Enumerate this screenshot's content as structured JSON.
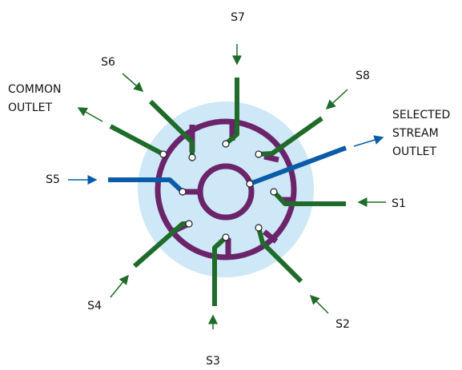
{
  "labels": {
    "s7": "S7",
    "s6": "S6",
    "s8": "S8",
    "s5": "S5",
    "s1": "S1",
    "s4": "S4",
    "s2": "S2",
    "s3": "S3",
    "common_outlet": [
      "COMMON",
      "OUTLET"
    ],
    "selected_stream_outlet": [
      "SELECTED",
      "STREAM",
      "OUTLET"
    ]
  }
}
